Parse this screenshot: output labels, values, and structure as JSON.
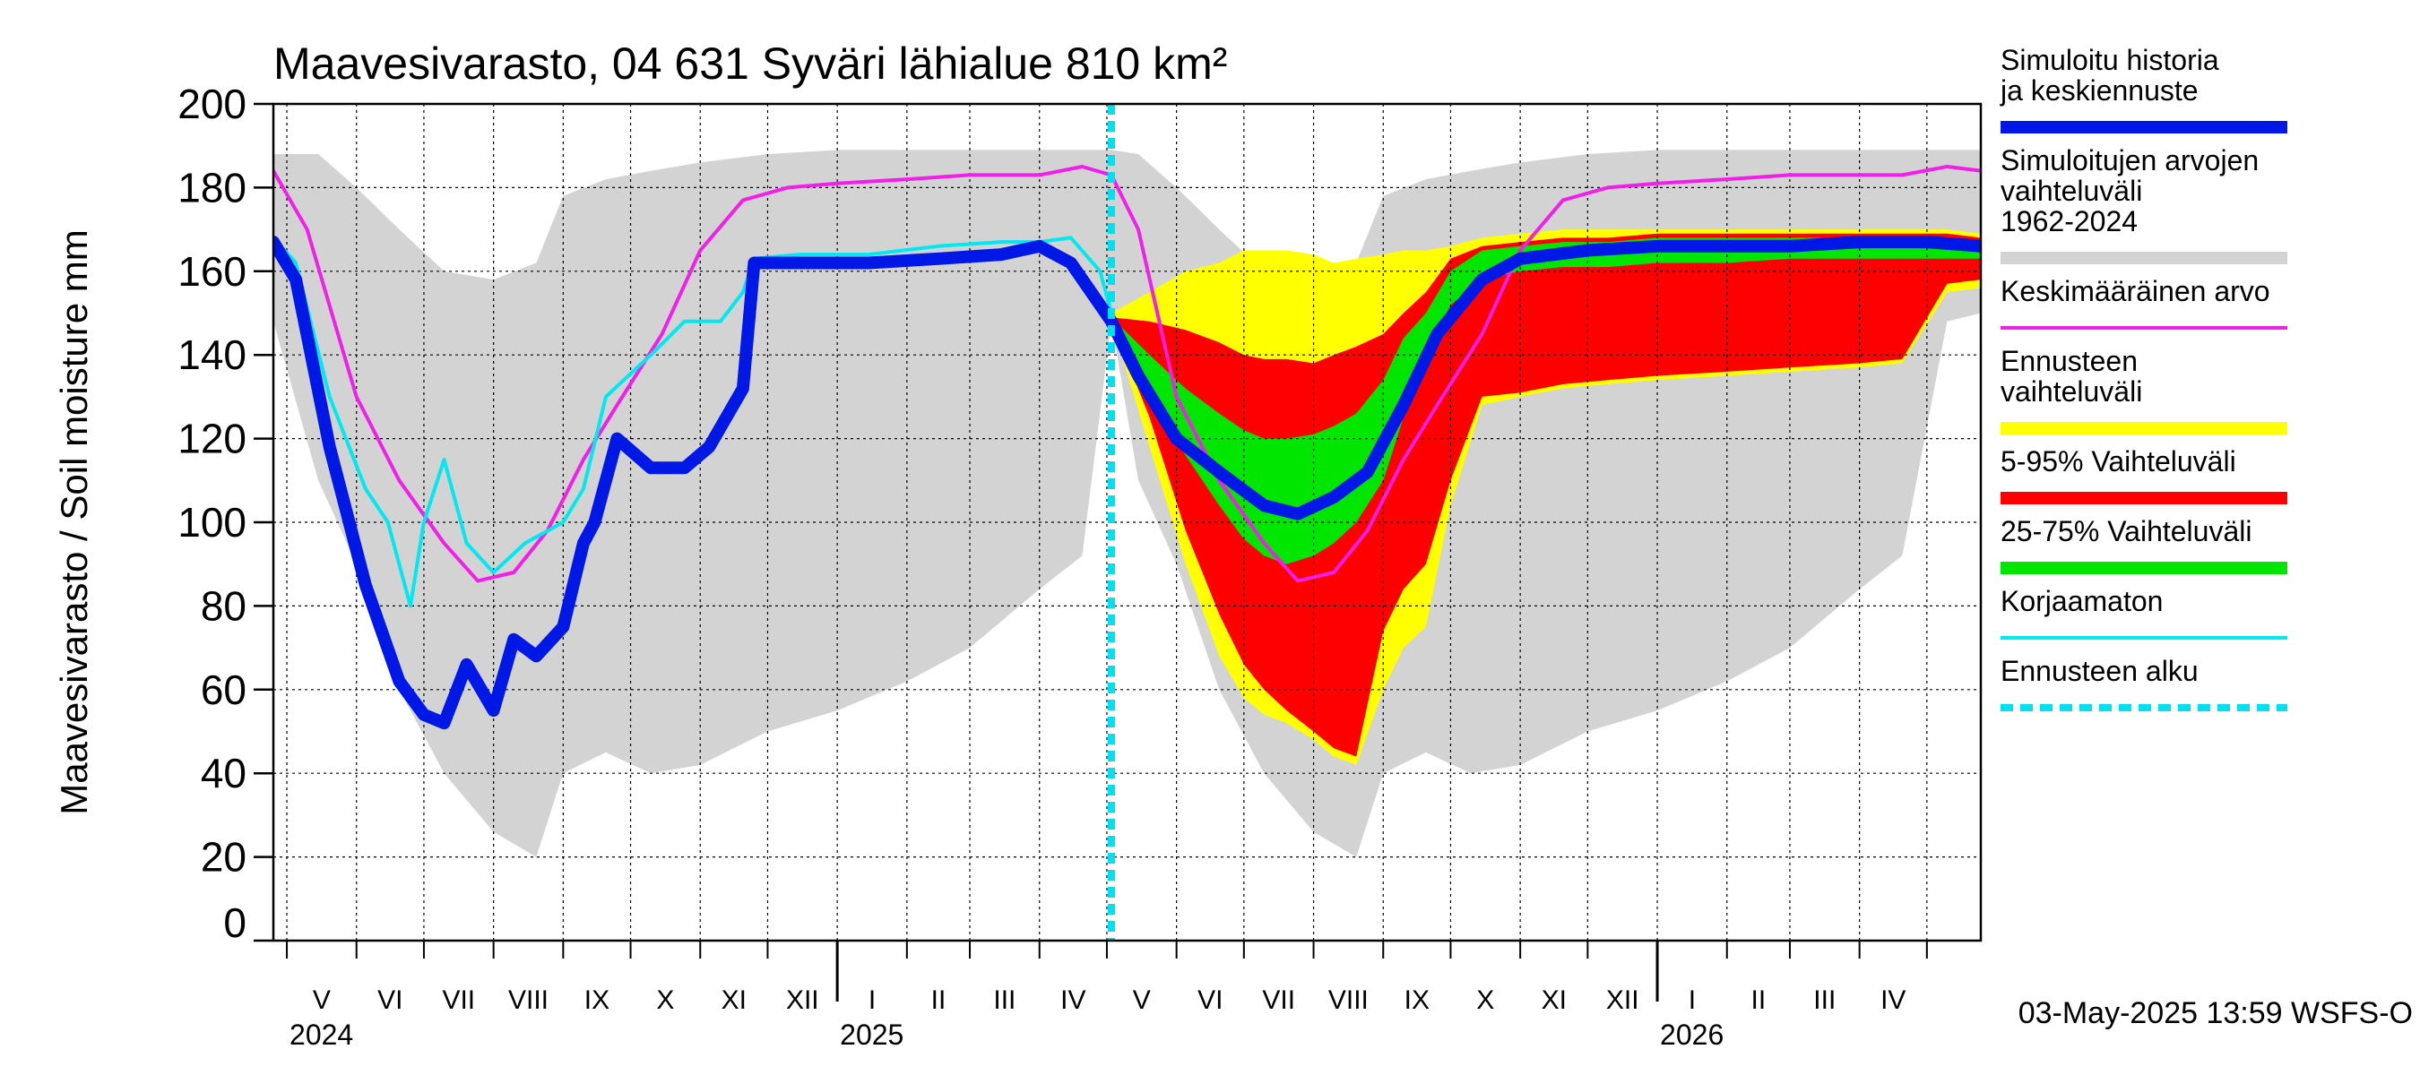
{
  "chart_data": {
    "type": "line",
    "title": "Maavesivarasto, 04 631 Syväri lähialue 810 km²",
    "ylabel": "Maavesivarasto / Soil moisture   mm",
    "ylim": [
      0,
      200
    ],
    "yticks": [
      0,
      20,
      40,
      60,
      80,
      100,
      120,
      140,
      160,
      180,
      200
    ],
    "xlim": [
      "2024-04-25",
      "2026-05-25"
    ],
    "month_labels": [
      "V",
      "VI",
      "VII",
      "VIII",
      "IX",
      "X",
      "XI",
      "XII",
      "I",
      "II",
      "III",
      "IV",
      "V",
      "VI",
      "VII",
      "VIII",
      "IX",
      "X",
      "XI",
      "XII",
      "I",
      "II",
      "III",
      "IV"
    ],
    "year_labels": [
      {
        "label": "2024",
        "date": "2024-05-01"
      },
      {
        "label": "2025",
        "date": "2025-01-01"
      },
      {
        "label": "2026",
        "date": "2026-01-01"
      }
    ],
    "forecast_start": "2025-05-03",
    "timestamp": "03-May-2025 13:59 WSFS-O",
    "colors": {
      "simulated": "#0018e6",
      "range_hist": "#d3d3d3",
      "mean": "#f020e8",
      "forecast_range": "#ffff00",
      "p5_95": "#ff0000",
      "p25_75": "#00e600",
      "uncorrected": "#00e8f0",
      "forecast_start": "#00e0f0"
    },
    "legend": [
      {
        "key": "simulated",
        "label": "Simuloitu historia ja keskiennuste",
        "style": "thick"
      },
      {
        "key": "range_hist",
        "label": "Simuloitujen arvojen vaihteluväli 1962-2024",
        "style": "thick"
      },
      {
        "key": "mean",
        "label": "Keskimääräinen arvo",
        "style": "thin"
      },
      {
        "key": "forecast_range",
        "label": "Ennusteen vaihteluväli",
        "style": "thick"
      },
      {
        "key": "p5_95",
        "label": "5-95% Vaihteluväli",
        "style": "thick"
      },
      {
        "key": "p25_75",
        "label": "25-75% Vaihteluväli",
        "style": "thick"
      },
      {
        "key": "uncorrected",
        "label": "Korjaamaton",
        "style": "thin"
      },
      {
        "key": "forecast_start",
        "label": "Ennusteen alku",
        "style": "dashed"
      }
    ],
    "hist_range": {
      "x": [
        "2024-04-25",
        "2024-05-15",
        "2024-06-01",
        "2024-06-20",
        "2024-07-10",
        "2024-08-01",
        "2024-08-20",
        "2024-09-01",
        "2024-09-20",
        "2024-10-10",
        "2024-11-01",
        "2024-12-01",
        "2025-01-01",
        "2025-02-01",
        "2025-03-01",
        "2025-04-01",
        "2025-04-20",
        "2025-05-03",
        "2025-05-15",
        "2025-06-01",
        "2025-06-20",
        "2025-07-10",
        "2025-08-01",
        "2025-08-20",
        "2025-09-01",
        "2025-09-20",
        "2025-10-10",
        "2025-11-01",
        "2025-12-01",
        "2026-01-01",
        "2026-02-01",
        "2026-03-01",
        "2026-04-01",
        "2026-04-20",
        "2026-05-10",
        "2026-05-25"
      ],
      "low": [
        148,
        110,
        90,
        60,
        40,
        26,
        20,
        40,
        45,
        40,
        42,
        50,
        55,
        62,
        70,
        84,
        92,
        148,
        110,
        90,
        60,
        40,
        26,
        20,
        40,
        45,
        40,
        42,
        50,
        55,
        62,
        70,
        84,
        92,
        148,
        150
      ],
      "high": [
        188,
        188,
        180,
        170,
        160,
        158,
        162,
        178,
        182,
        184,
        186,
        188,
        189,
        189,
        189,
        189,
        189,
        189,
        188,
        180,
        170,
        160,
        158,
        162,
        178,
        182,
        184,
        186,
        188,
        189,
        189,
        189,
        189,
        189,
        189,
        189
      ]
    },
    "mean": {
      "x": [
        "2024-04-25",
        "2024-05-10",
        "2024-06-01",
        "2024-06-20",
        "2024-07-10",
        "2024-07-25",
        "2024-08-10",
        "2024-08-25",
        "2024-09-10",
        "2024-09-25",
        "2024-10-15",
        "2024-11-01",
        "2024-11-20",
        "2024-12-10",
        "2025-01-01",
        "2025-02-01",
        "2025-03-01",
        "2025-04-01",
        "2025-04-20",
        "2025-05-03",
        "2025-05-15",
        "2025-06-01",
        "2025-06-20",
        "2025-07-10",
        "2025-07-25",
        "2025-08-10",
        "2025-08-25",
        "2025-09-10",
        "2025-09-25",
        "2025-10-15",
        "2025-11-01",
        "2025-11-20",
        "2025-12-10",
        "2026-01-01",
        "2026-02-01",
        "2026-03-01",
        "2026-04-01",
        "2026-04-20",
        "2026-05-10",
        "2026-05-25"
      ],
      "y": [
        184,
        170,
        130,
        110,
        95,
        86,
        88,
        98,
        115,
        128,
        145,
        165,
        177,
        180,
        181,
        182,
        183,
        183,
        185,
        183,
        170,
        130,
        110,
        95,
        86,
        88,
        98,
        115,
        128,
        145,
        165,
        177,
        180,
        181,
        182,
        183,
        183,
        183,
        185,
        184
      ]
    },
    "simulated": {
      "x": [
        "2024-04-25",
        "2024-05-05",
        "2024-05-20",
        "2024-06-05",
        "2024-06-20",
        "2024-07-01",
        "2024-07-10",
        "2024-07-20",
        "2024-08-01",
        "2024-08-10",
        "2024-08-20",
        "2024-09-01",
        "2024-09-10",
        "2024-09-15",
        "2024-09-25",
        "2024-10-10",
        "2024-10-25",
        "2024-11-05",
        "2024-11-20",
        "2024-11-25",
        "2024-12-15",
        "2025-01-15",
        "2025-02-15",
        "2025-03-15",
        "2025-04-01",
        "2025-04-15",
        "2025-05-03",
        "2025-05-15",
        "2025-06-01",
        "2025-06-20",
        "2025-07-10",
        "2025-07-25",
        "2025-08-10",
        "2025-08-25",
        "2025-09-10",
        "2025-09-25",
        "2025-10-15",
        "2025-11-01",
        "2025-12-01",
        "2026-01-01",
        "2026-02-01",
        "2026-03-01",
        "2026-04-01",
        "2026-05-01",
        "2026-05-25"
      ],
      "y": [
        167,
        158,
        118,
        85,
        62,
        54,
        52,
        66,
        55,
        72,
        68,
        75,
        95,
        100,
        120,
        113,
        113,
        118,
        132,
        162,
        162,
        162,
        163,
        164,
        166,
        162,
        148,
        135,
        120,
        112,
        104,
        102,
        106,
        112,
        128,
        145,
        158,
        163,
        165,
        166,
        166,
        166,
        167,
        167,
        166
      ]
    },
    "uncorrected": {
      "x": [
        "2024-04-25",
        "2024-05-05",
        "2024-05-20",
        "2024-06-05",
        "2024-06-15",
        "2024-06-25",
        "2024-07-01",
        "2024-07-10",
        "2024-07-20",
        "2024-08-01",
        "2024-08-15",
        "2024-09-01",
        "2024-09-10",
        "2024-09-20",
        "2024-10-10",
        "2024-10-25",
        "2024-11-10",
        "2024-11-20",
        "2024-11-25",
        "2024-12-15",
        "2025-01-15",
        "2025-02-15",
        "2025-03-15",
        "2025-04-01",
        "2025-04-15",
        "2025-04-28",
        "2025-05-03"
      ],
      "y": [
        168,
        162,
        130,
        108,
        100,
        80,
        100,
        115,
        95,
        88,
        95,
        100,
        108,
        130,
        140,
        148,
        148,
        155,
        163,
        164,
        164,
        166,
        167,
        167,
        168,
        160,
        150
      ]
    },
    "forecast_x": [
      "2025-05-03",
      "2025-05-20",
      "2025-06-05",
      "2025-06-20",
      "2025-07-01",
      "2025-07-10",
      "2025-07-20",
      "2025-08-01",
      "2025-08-10",
      "2025-08-20",
      "2025-09-01",
      "2025-09-10",
      "2025-09-20",
      "2025-10-01",
      "2025-10-15",
      "2025-11-01",
      "2025-11-20",
      "2025-12-10",
      "2026-01-01",
      "2026-02-01",
      "2026-03-01",
      "2026-04-01",
      "2026-04-20",
      "2026-05-10",
      "2026-05-25"
    ],
    "forecast_range": {
      "low": [
        148,
        118,
        90,
        68,
        58,
        54,
        52,
        48,
        44,
        42,
        60,
        70,
        75,
        104,
        128,
        130,
        132,
        133,
        134,
        135,
        136,
        137,
        138,
        155,
        156
      ],
      "high": [
        150,
        155,
        160,
        162,
        165,
        165,
        165,
        164,
        162,
        163,
        164,
        165,
        165,
        166,
        168,
        169,
        170,
        170,
        170,
        170,
        170,
        170,
        170,
        170,
        169
      ]
    },
    "p5_95": {
      "low": [
        148,
        125,
        98,
        78,
        66,
        60,
        55,
        50,
        46,
        44,
        74,
        84,
        90,
        110,
        130,
        131,
        133,
        134,
        135,
        136,
        137,
        138,
        139,
        157,
        158
      ],
      "high": [
        149,
        148,
        146,
        143,
        140,
        139,
        139,
        138,
        140,
        142,
        145,
        150,
        155,
        163,
        166,
        167,
        168,
        168,
        169,
        169,
        169,
        169,
        169,
        169,
        168
      ]
    },
    "p25_75": {
      "low": [
        148,
        130,
        116,
        104,
        96,
        92,
        90,
        92,
        95,
        100,
        110,
        125,
        140,
        152,
        158,
        160,
        161,
        161,
        162,
        162,
        163,
        163,
        163,
        163,
        163
      ],
      "high": [
        149,
        140,
        132,
        126,
        122,
        120,
        120,
        121,
        123,
        126,
        134,
        144,
        150,
        160,
        165,
        166,
        167,
        167,
        168,
        168,
        168,
        168,
        168,
        168,
        167
      ]
    }
  }
}
